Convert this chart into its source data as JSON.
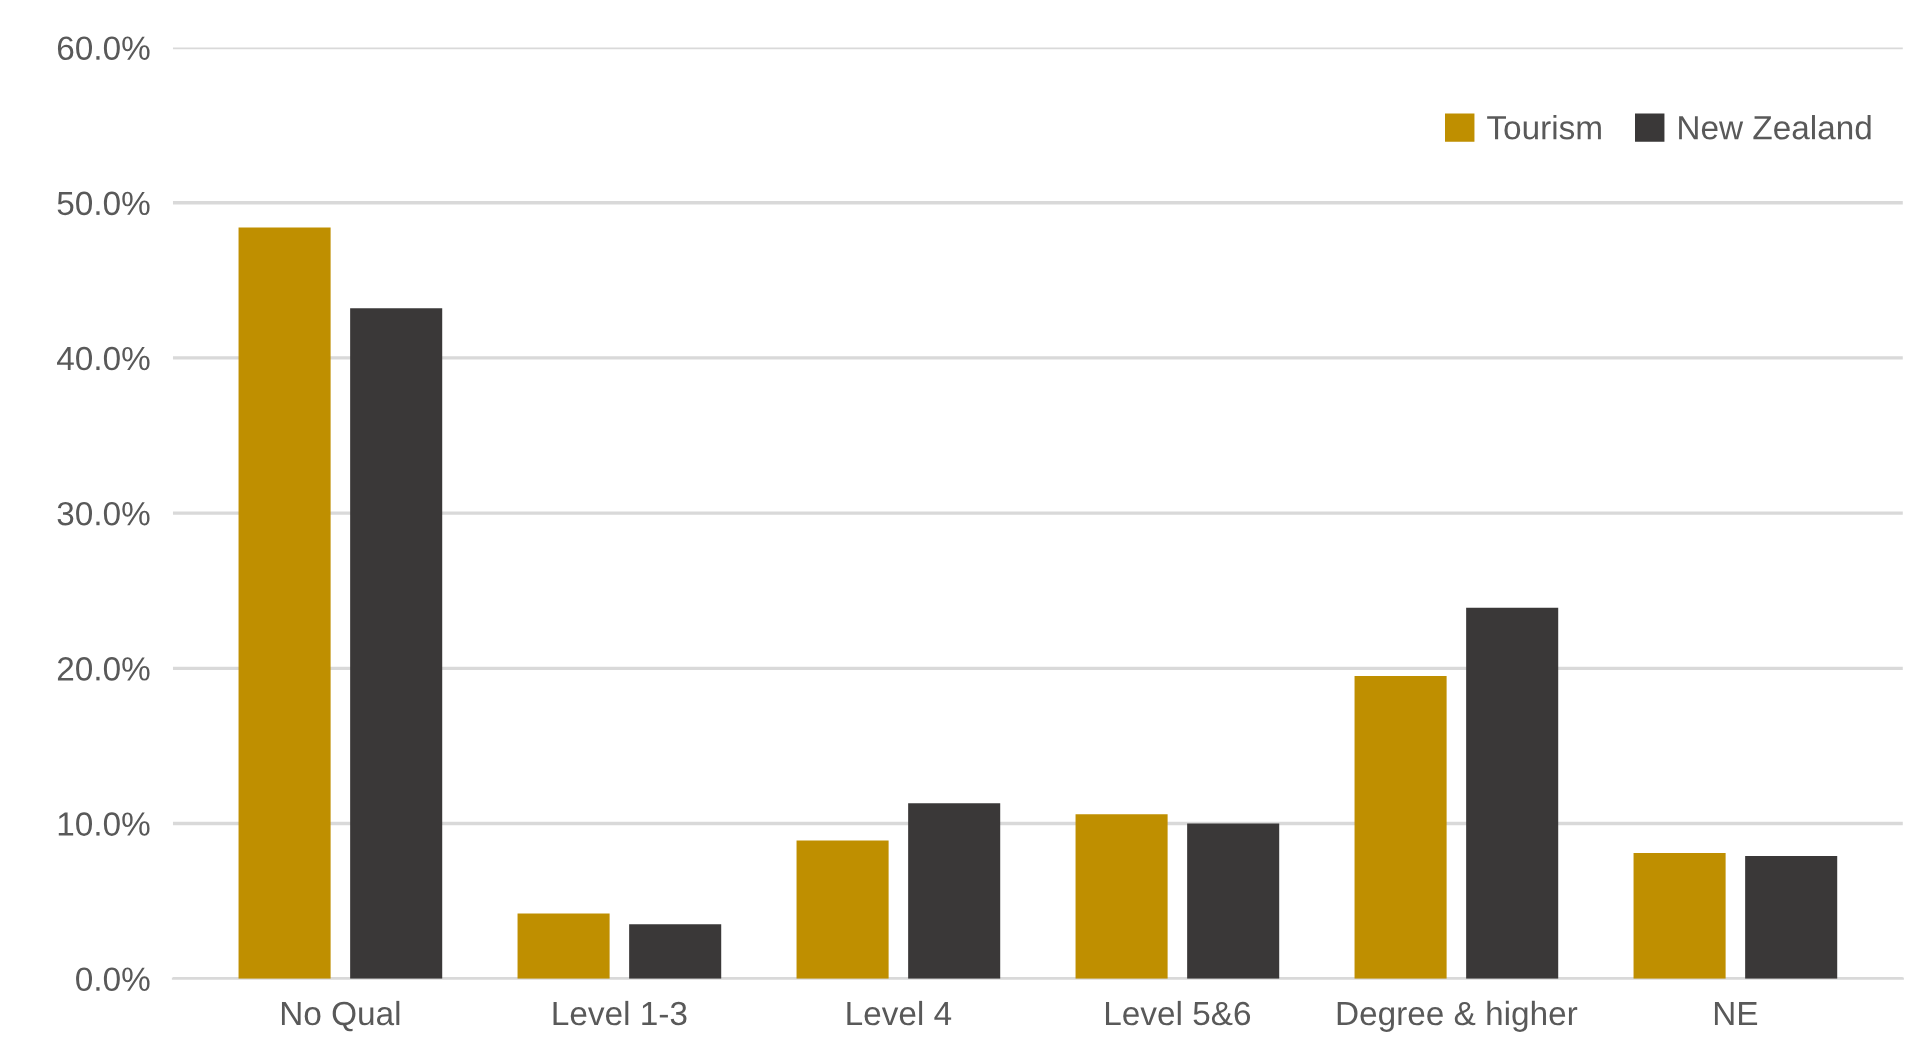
{
  "chart_data": {
    "type": "bar",
    "categories": [
      "No Qual",
      "Level 1-3",
      "Level 4",
      "Level 5&6",
      "Degree & higher",
      "NE"
    ],
    "series": [
      {
        "name": "Tourism",
        "color": "#bf8f00",
        "values": [
          48.4,
          4.2,
          8.9,
          10.6,
          19.5,
          8.1
        ]
      },
      {
        "name": "New Zealand",
        "color": "#3a3838",
        "values": [
          43.2,
          3.5,
          11.3,
          10.0,
          23.9,
          7.9
        ]
      }
    ],
    "ylim": [
      0,
      60
    ],
    "yticks": [
      {
        "value": 0,
        "label": "0.0%"
      },
      {
        "value": 10,
        "label": "10.0%"
      },
      {
        "value": 20,
        "label": "20.0%"
      },
      {
        "value": 30,
        "label": "30.0%"
      },
      {
        "value": 40,
        "label": "40.0%"
      },
      {
        "value": 50,
        "label": "50.0%"
      },
      {
        "value": 60,
        "label": "60.0%"
      }
    ],
    "grid": "y",
    "legend": "top right"
  }
}
